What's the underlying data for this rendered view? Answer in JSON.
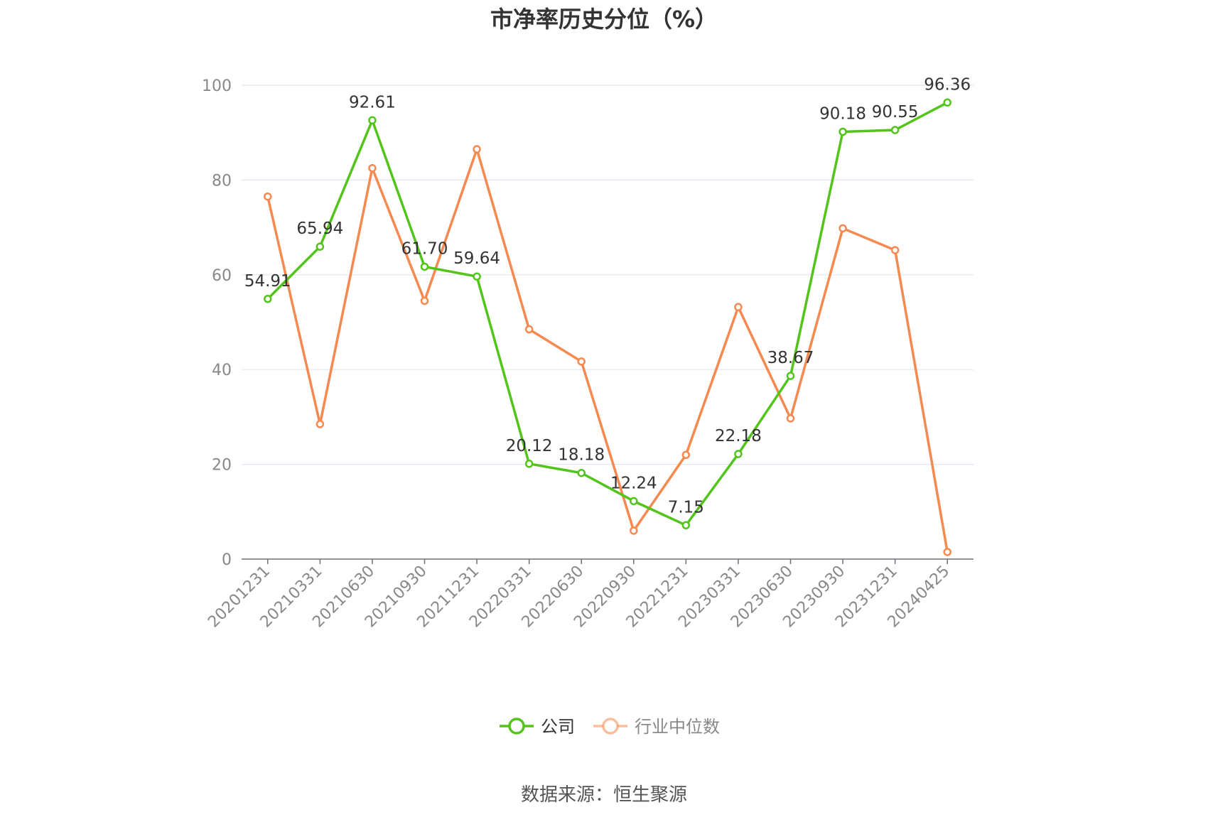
{
  "chart_data": {
    "type": "line",
    "title": "市净率历史分位（%）",
    "categories": [
      "20201231",
      "20210331",
      "20210630",
      "20210930",
      "20211231",
      "20220331",
      "20220630",
      "20220930",
      "20221231",
      "20230331",
      "20230630",
      "20230930",
      "20231231",
      "20240425"
    ],
    "series": [
      {
        "name": "公司",
        "color": "#52c41a",
        "values": [
          54.91,
          65.94,
          92.61,
          61.7,
          59.64,
          20.12,
          18.18,
          12.24,
          7.15,
          22.18,
          38.67,
          90.18,
          90.55,
          96.36
        ],
        "labels": [
          "54.91",
          "65.94",
          "92.61",
          "61.70",
          "59.64",
          "20.12",
          "18.18",
          "12.24",
          "7.15",
          "22.18",
          "38.67",
          "90.18",
          "90.55",
          "96.36"
        ]
      },
      {
        "name": "行业中位数",
        "color": "#f5894f",
        "values": [
          76.5,
          28.5,
          82.5,
          54.5,
          86.5,
          48.5,
          41.7,
          6.0,
          22.0,
          53.2,
          29.7,
          69.8,
          65.2,
          1.5
        ]
      }
    ],
    "yticks": [
      "0",
      "20",
      "40",
      "60",
      "80",
      "100"
    ],
    "ylim": [
      0,
      100
    ],
    "grid": true,
    "legend_position": "bottom-center"
  },
  "source": "数据来源：恒生聚源"
}
